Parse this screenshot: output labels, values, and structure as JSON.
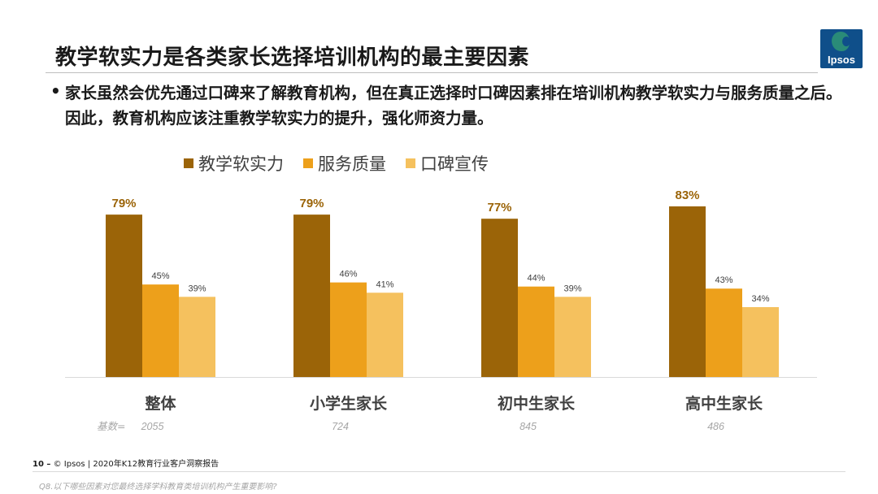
{
  "slide": {
    "title": "教学软实力是各类家长选择培训机构的最主要因素",
    "bullet_marker": "•",
    "bullet": "家长虽然会优先通过口碑来了解教育机构，但在真正选择时口碑因素排在培训机构教学软实力与服务质量之后。因此，教育机构应该注重教学软实力的提升，强化师资力量。",
    "logo_text": "Ipsos",
    "footer_page": "10 –",
    "footer_text": "© Ipsos | 2020年K12教育行业客户洞察报告",
    "footnote": "Q8.以下哪些因素对您最终选择学科教育类培训机构产生重要影响?"
  },
  "colors": {
    "series1": "#9b6408",
    "series2": "#eda01b",
    "series3": "#f5c15e",
    "label_highlight": "#9b6408",
    "label_normal": "#404040",
    "base_text": "#a6a6a6"
  },
  "chart_data": {
    "type": "bar",
    "categories": [
      "整体",
      "小学生家长",
      "初中生家长",
      "高中生家长"
    ],
    "series": [
      {
        "name": "教学软实力",
        "values": [
          79,
          79,
          77,
          83
        ],
        "labels": [
          "79%",
          "79%",
          "77%",
          "83%"
        ]
      },
      {
        "name": "服务质量",
        "values": [
          45,
          46,
          44,
          43
        ],
        "labels": [
          "45%",
          "46%",
          "44%",
          "43%"
        ]
      },
      {
        "name": "口碑宣传",
        "values": [
          39,
          41,
          39,
          34
        ],
        "labels": [
          "39%",
          "41%",
          "39%",
          "34%"
        ]
      }
    ],
    "base_label": "基数=",
    "base_values": [
      "2055",
      "724",
      "845",
      "486"
    ],
    "ylim": [
      0,
      100
    ],
    "legend_position": "top"
  }
}
